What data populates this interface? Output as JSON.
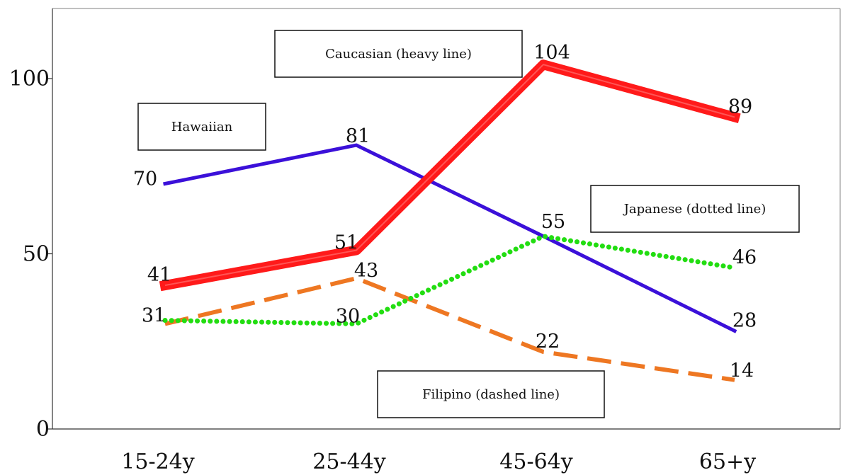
{
  "chart_data": {
    "type": "line",
    "title": "",
    "xlabel": "",
    "ylabel": "",
    "categories": [
      "15-24y",
      "25-44y",
      "45-64y",
      "65+y"
    ],
    "ylim": [
      0,
      120
    ],
    "yticks": [
      0,
      50,
      100
    ],
    "grid": false,
    "series": [
      {
        "name": "Caucasian (heavy line)",
        "values": [
          41,
          51,
          104,
          89
        ],
        "color": "#ff1a1a",
        "style": "heavy"
      },
      {
        "name": "Hawaiian",
        "values": [
          70,
          81,
          55,
          28
        ],
        "color": "#3b10d9",
        "style": "solid"
      },
      {
        "name": "Japanese (dotted line)",
        "values": [
          31,
          30,
          55,
          46
        ],
        "color": "#22dd11",
        "style": "dotted"
      },
      {
        "name": "Filipino (dashed line)",
        "values": [
          30,
          43,
          22,
          14
        ],
        "color": "#ee7722",
        "style": "dashed"
      }
    ],
    "data_labels": [
      {
        "series": 0,
        "index": 0,
        "text": "41"
      },
      {
        "series": 0,
        "index": 1,
        "text": "51"
      },
      {
        "series": 0,
        "index": 2,
        "text": "104"
      },
      {
        "series": 0,
        "index": 3,
        "text": "89"
      },
      {
        "series": 1,
        "index": 0,
        "text": "70"
      },
      {
        "series": 1,
        "index": 1,
        "text": "81"
      },
      {
        "series": 1,
        "index": 3,
        "text": "28"
      },
      {
        "series": 2,
        "index": 0,
        "text": "31"
      },
      {
        "series": 2,
        "index": 1,
        "text": "30"
      },
      {
        "series": 2,
        "index": 2,
        "text": "55"
      },
      {
        "series": 2,
        "index": 3,
        "text": "46"
      },
      {
        "series": 3,
        "index": 1,
        "text": "43"
      },
      {
        "series": 3,
        "index": 2,
        "text": "22"
      },
      {
        "series": 3,
        "index": 3,
        "text": "14"
      }
    ]
  }
}
